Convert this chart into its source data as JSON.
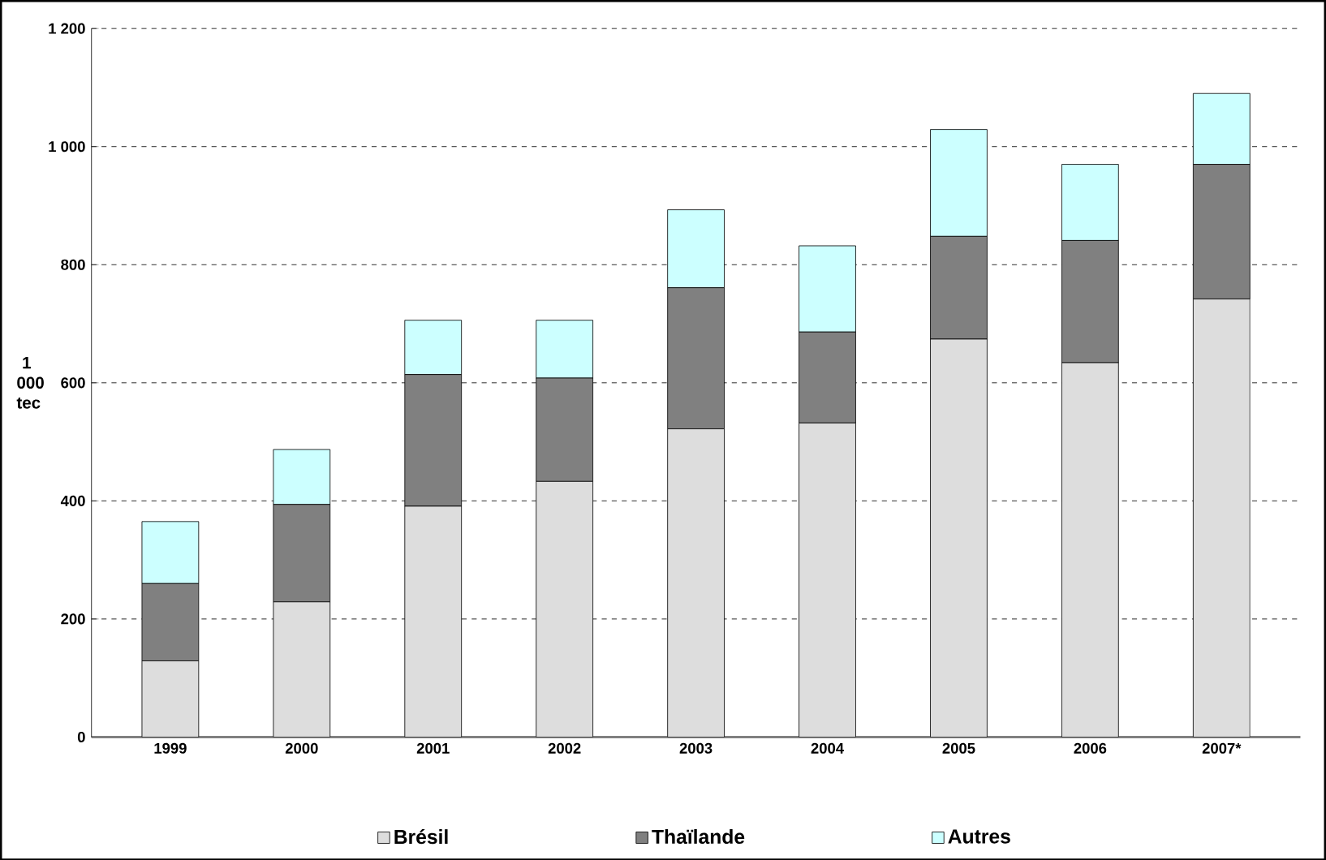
{
  "chart_data": {
    "type": "bar",
    "stacked": true,
    "ylabel": "1 000 tec",
    "categories": [
      "1999",
      "2000",
      "2001",
      "2002",
      "2003",
      "2004",
      "2005",
      "2006",
      "2007*"
    ],
    "series": [
      {
        "name": "Brésil",
        "color": "#dddddd",
        "values": [
          129,
          229,
          391,
          433,
          522,
          532,
          674,
          634,
          742
        ]
      },
      {
        "name": "Thaïlande",
        "color": "#808080",
        "values": [
          131,
          165,
          223,
          175,
          239,
          154,
          174,
          207,
          228
        ]
      },
      {
        "name": "Autres",
        "color": "#ccffff",
        "values": [
          105,
          93,
          92,
          98,
          132,
          146,
          181,
          129,
          120
        ]
      }
    ],
    "ylim": [
      0,
      1200
    ],
    "yticks": [
      0,
      200,
      400,
      600,
      800,
      {
        "value": 1000,
        "label": "1 000"
      },
      {
        "value": 1200,
        "label": "1 200"
      }
    ],
    "grid": "y",
    "legend": "bottom"
  }
}
